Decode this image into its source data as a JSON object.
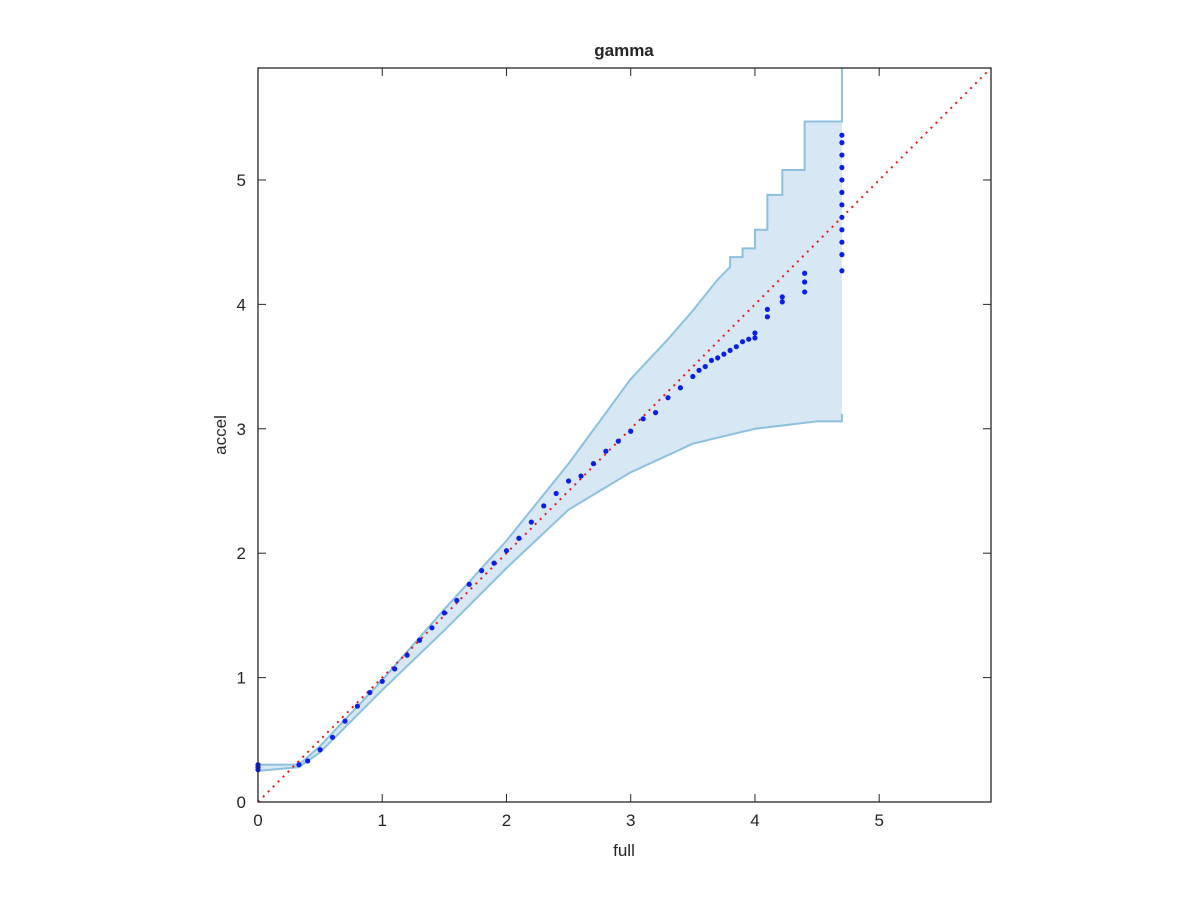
{
  "chart_data": {
    "type": "qqplot",
    "title": "gamma",
    "x_label": "full",
    "y_label": "accel",
    "xlim": [
      0,
      5.9
    ],
    "ylim": [
      0,
      5.9
    ],
    "xticks": [
      0,
      1,
      2,
      3,
      4,
      5
    ],
    "yticks": [
      0,
      1,
      2,
      3,
      4,
      5
    ],
    "points": {
      "color": "#0b1fe8",
      "x": [
        0,
        0,
        0,
        0.33,
        0.4,
        0.5,
        0.6,
        0.7,
        0.8,
        0.9,
        1.0,
        1.1,
        1.2,
        1.3,
        1.4,
        1.5,
        1.6,
        1.7,
        1.8,
        1.9,
        2.0,
        2.1,
        2.2,
        2.3,
        2.4,
        2.5,
        2.6,
        2.7,
        2.8,
        2.9,
        3.0,
        3.1,
        3.2,
        3.3,
        3.4,
        3.5,
        3.55,
        3.6,
        3.65,
        3.7,
        3.75,
        3.8,
        3.85,
        3.9,
        3.95,
        4.0,
        4.0,
        4.1,
        4.1,
        4.22,
        4.22,
        4.4,
        4.4,
        4.4,
        4.7,
        4.7,
        4.7,
        4.7,
        4.7,
        4.7,
        4.7,
        4.7,
        4.7,
        4.7,
        4.7,
        4.7
      ],
      "y": [
        0.26,
        0.28,
        0.3,
        0.3,
        0.33,
        0.42,
        0.52,
        0.65,
        0.77,
        0.88,
        0.97,
        1.07,
        1.18,
        1.3,
        1.4,
        1.52,
        1.62,
        1.75,
        1.86,
        1.92,
        2.02,
        2.12,
        2.25,
        2.38,
        2.48,
        2.58,
        2.62,
        2.72,
        2.82,
        2.9,
        2.98,
        3.08,
        3.13,
        3.25,
        3.33,
        3.42,
        3.47,
        3.5,
        3.55,
        3.57,
        3.6,
        3.63,
        3.66,
        3.7,
        3.72,
        3.73,
        3.77,
        3.9,
        3.96,
        4.02,
        4.06,
        4.1,
        4.18,
        4.25,
        4.27,
        4.4,
        4.5,
        4.6,
        4.7,
        4.8,
        4.9,
        5.0,
        5.1,
        5.2,
        5.3,
        5.36
      ]
    },
    "band": {
      "fill": "#d7e7f4",
      "line_color": "#8cc0de",
      "upper": {
        "x": [
          0,
          0.33,
          0.5,
          1,
          1.5,
          2,
          2.5,
          3,
          3.3,
          3.5,
          3.7,
          3.8,
          3.8,
          3.9,
          3.9,
          4.0,
          4.0,
          4.1,
          4.1,
          4.22,
          4.22,
          4.4,
          4.4,
          4.7,
          4.7
        ],
        "values": [
          0.3,
          0.3,
          0.45,
          0.98,
          1.55,
          2.1,
          2.72,
          3.4,
          3.72,
          3.95,
          4.2,
          4.3,
          4.38,
          4.38,
          4.45,
          4.45,
          4.6,
          4.6,
          4.88,
          4.88,
          5.08,
          5.08,
          5.47,
          5.47,
          5.9
        ]
      },
      "lower": {
        "x": [
          0,
          0.33,
          0.5,
          1,
          1.5,
          2,
          2.5,
          3,
          3.5,
          4,
          4.5,
          4.7,
          4.7
        ],
        "values": [
          0.25,
          0.28,
          0.4,
          0.9,
          1.38,
          1.88,
          2.35,
          2.65,
          2.88,
          3.0,
          3.06,
          3.06,
          3.12
        ]
      }
    },
    "reference_line": {
      "color": "#e8191b",
      "x": [
        0,
        5.9
      ],
      "y": [
        0,
        5.9
      ]
    }
  }
}
